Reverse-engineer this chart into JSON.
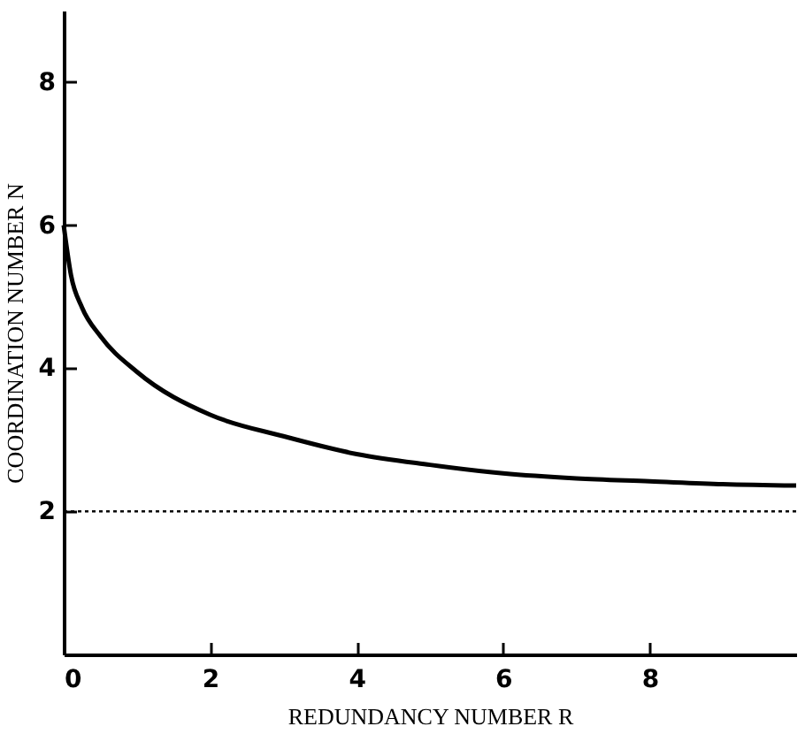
{
  "chart_data": {
    "type": "line",
    "xlabel": "REDUNDANCY NUMBER R",
    "ylabel": "COORDINATION NUMBER N",
    "x": [
      0,
      0.1,
      0.25,
      0.5,
      1,
      2,
      3,
      4,
      5,
      6,
      7,
      8,
      9,
      10
    ],
    "series": [
      {
        "color": "#000000",
        "values": [
          6,
          5.3,
          4.85,
          4.45,
          3.95,
          3.35,
          3.05,
          2.8,
          2.65,
          2.53,
          2.46,
          2.42,
          2.38,
          2.36
        ]
      }
    ],
    "xlim": [
      0,
      10
    ],
    "ylim": [
      0,
      9
    ],
    "xticks": [
      0,
      2,
      4,
      6,
      8
    ],
    "yticks": [
      2,
      4,
      6,
      8
    ],
    "ref_lines": [
      {
        "axis": "y",
        "value": 2,
        "line_style": "dotted",
        "color": "#000000"
      }
    ],
    "grid": false,
    "marker": "none",
    "line_style": "solid"
  }
}
